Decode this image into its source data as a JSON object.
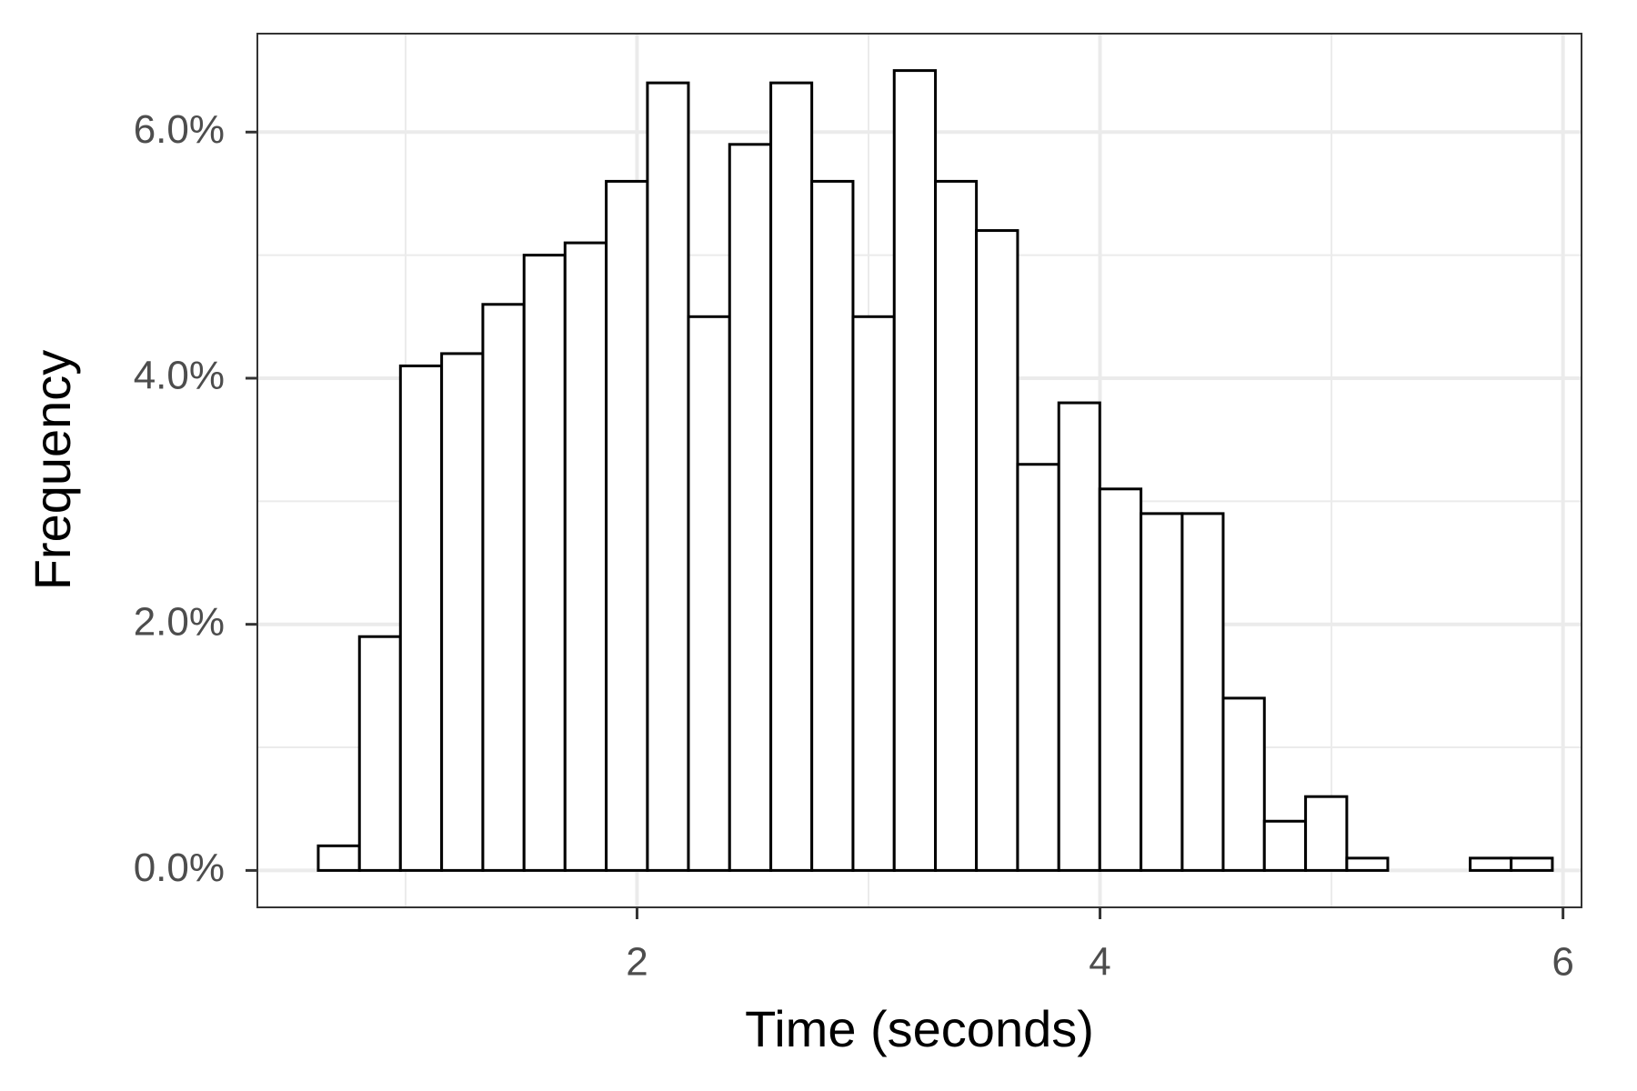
{
  "chart_data": {
    "type": "histogram",
    "x_label": "Time (seconds)",
    "y_label": "Frequency",
    "bins": [
      0.623,
      0.801,
      0.978,
      1.156,
      1.334,
      1.512,
      1.689,
      1.867,
      2.045,
      2.222,
      2.4,
      2.578,
      2.755,
      2.933,
      3.111,
      3.289,
      3.466,
      3.644,
      3.822,
      3.999,
      4.177,
      4.355,
      4.532,
      4.71,
      4.888,
      5.066,
      5.243,
      5.421,
      5.599,
      5.776,
      5.954
    ],
    "values": [
      0.2,
      1.9,
      4.1,
      4.2,
      4.6,
      5.0,
      5.1,
      5.6,
      6.4,
      4.5,
      5.9,
      6.4,
      5.6,
      4.5,
      6.5,
      5.6,
      5.2,
      3.3,
      3.8,
      3.1,
      2.9,
      2.9,
      1.4,
      0.4,
      0.6,
      0.1,
      0,
      0,
      0.1,
      0.1
    ],
    "fill": "#ffffff",
    "edge_color": "#000000",
    "xlim": [
      0.36,
      6.08
    ],
    "ylim": [
      -0.3,
      6.8
    ],
    "xticks": [
      2,
      4,
      6
    ],
    "yticks": [
      {
        "value": 0,
        "label": "0.0%"
      },
      {
        "value": 2,
        "label": "2.0%"
      },
      {
        "value": 4,
        "label": "4.0%"
      },
      {
        "value": 6,
        "label": "6.0%"
      }
    ],
    "x_minor_grid": [
      1,
      3,
      5
    ],
    "y_minor_grid": [
      1,
      3,
      5
    ],
    "grid": true
  }
}
